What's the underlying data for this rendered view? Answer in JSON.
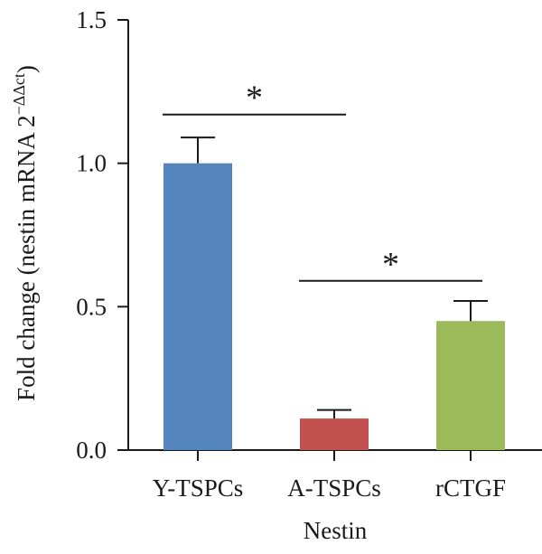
{
  "chart_data": {
    "type": "bar",
    "categories": [
      "Y-TSPCs",
      "A-TSPCs",
      "rCTGF"
    ],
    "values": [
      1.0,
      0.11,
      0.45
    ],
    "errors": [
      0.09,
      0.03,
      0.07
    ],
    "colors": [
      "#5585bd",
      "#c1504f",
      "#9bba59"
    ],
    "xlabel": "Nestin",
    "ylabel_main": "Fold change (nestin mRNA 2",
    "ylabel_sup": "−ΔΔct",
    "ylabel_close": ")",
    "ylim": [
      0,
      1.5
    ],
    "yticks": [
      0.0,
      0.5,
      1.0,
      1.5
    ],
    "ytick_labels": [
      "0.0",
      "0.5",
      "1.0",
      "1.5"
    ],
    "significance": [
      {
        "from": 0,
        "to": 1,
        "y": 1.17,
        "label": "*"
      },
      {
        "from": 1,
        "to": 2,
        "y": 0.59,
        "label": "*"
      }
    ],
    "grid": false,
    "legend": "none"
  }
}
